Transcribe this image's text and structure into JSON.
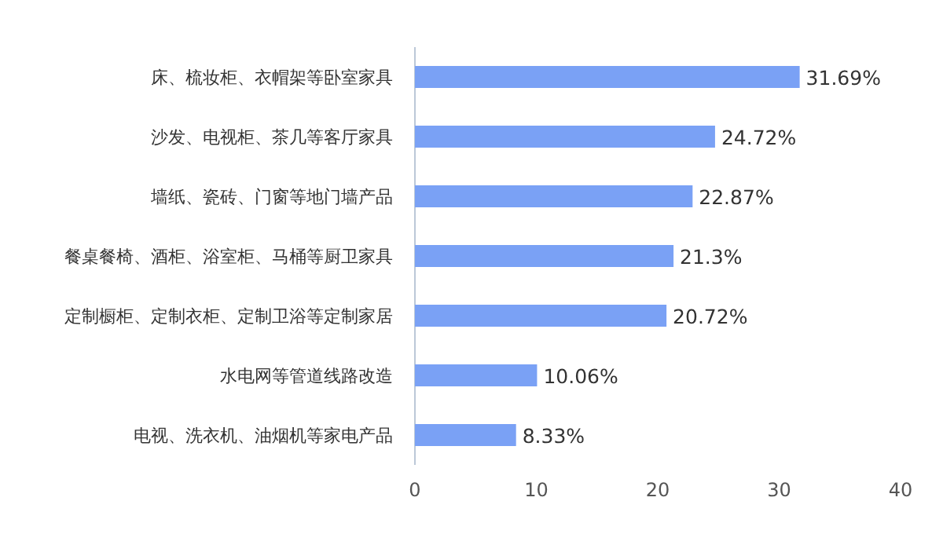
{
  "chart_data": {
    "type": "bar",
    "orientation": "horizontal",
    "categories": [
      "床、梳妆柜、衣帽架等卧室家具",
      "沙发、电视柜、茶几等客厅家具",
      "墙纸、瓷砖、门窗等地门墙产品",
      "餐桌餐椅、酒柜、浴室柜、马桶等厨卫家具",
      "定制橱柜、定制衣柜、定制卫浴等定制家居",
      "水电网等管道线路改造",
      "电视、洗衣机、油烟机等家电产品"
    ],
    "values": [
      31.69,
      24.72,
      22.87,
      21.3,
      20.72,
      10.06,
      8.33
    ],
    "value_labels": [
      "31.69%",
      "24.72%",
      "22.87%",
      "21.3%",
      "20.72%",
      "10.06%",
      "8.33%"
    ],
    "color": "#7aa1f5",
    "xlim": [
      0,
      40
    ],
    "xticks": [
      0,
      10,
      20,
      30,
      40
    ],
    "grid": false
  }
}
